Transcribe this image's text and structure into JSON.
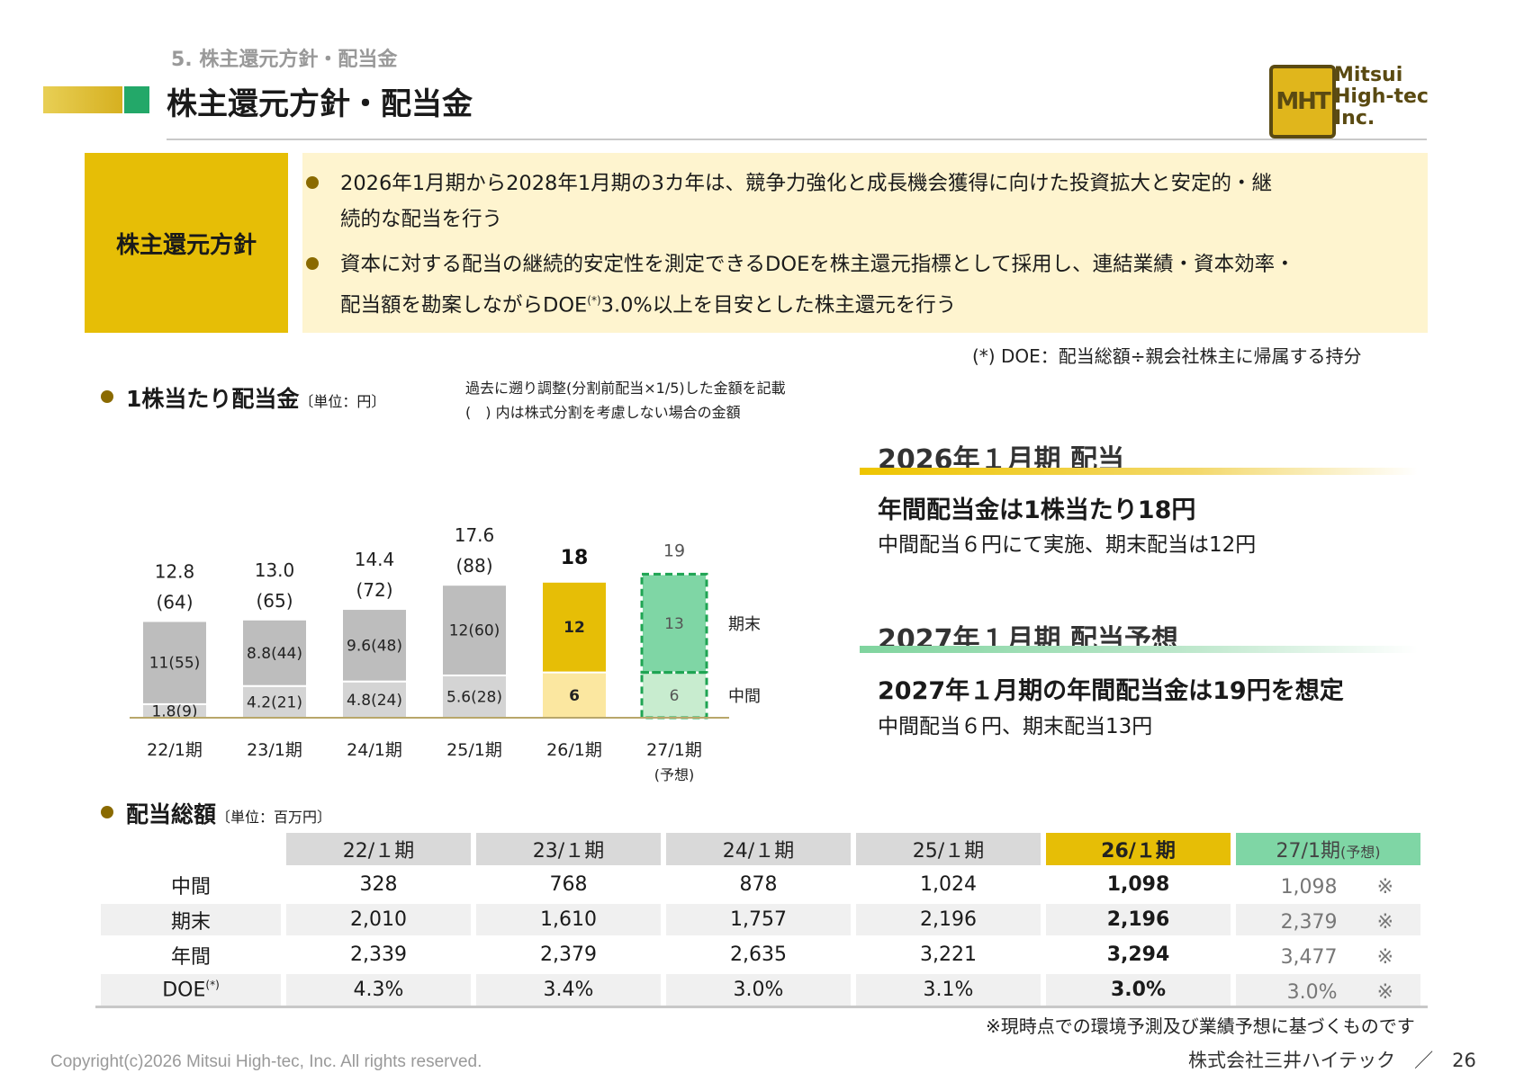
{
  "section_kicker": "5. 株主還元方針・配当金",
  "page_title": "株主還元方針・配当金",
  "logo": {
    "mark": "MHT",
    "line1": "Mitsui",
    "line2": "High-tec",
    "line3": "Inc."
  },
  "policy": {
    "label": "株主還元方針",
    "bullet1_l1": "2026年1月期から2028年1月期の3カ年は、競争力強化と成長機会獲得に向けた投資拡大と安定的・継",
    "bullet1_l2": "続的な配当を行う",
    "bullet2_l1": "資本に対する配当の継続的安定性を測定できるDOEを株主還元指標として採用し、連結業績・資本効率・",
    "bullet2_l2a": "配当額を勘案しながらDOE",
    "bullet2_sup": "(*)",
    "bullet2_l2b": "3.0%以上を目安とした株主還元を行う"
  },
  "doe_note": "(*) DOE：配当総額÷親会社株主に帰属する持分",
  "per_share": {
    "heading": "1株当たり配当金",
    "unit": "〔単位：円〕",
    "note1": "過去に遡り調整(分割前配当×1/5)した金額を記載",
    "note2": "(　) 内は株式分割を考慮しない場合の金額"
  },
  "chart_data": {
    "type": "bar",
    "stacked": true,
    "categories": [
      "22/1期",
      "23/1期",
      "24/1期",
      "25/1期",
      "26/1期",
      "27/1期"
    ],
    "category_note": [
      "",
      "",
      "",
      "",
      "",
      "(予想)"
    ],
    "series": [
      {
        "name": "中間",
        "values": [
          1.8,
          4.2,
          4.8,
          5.6,
          6,
          6
        ],
        "labels": [
          "1.8(9)",
          "4.2(21)",
          "4.8(24)",
          "5.6(28)",
          "6",
          "6"
        ]
      },
      {
        "name": "期末",
        "values": [
          11,
          8.8,
          9.6,
          12,
          12,
          13
        ],
        "labels": [
          "11(55)",
          "8.8(44)",
          "9.6(48)",
          "12(60)",
          "12",
          "13"
        ]
      }
    ],
    "totals": [
      "12.8",
      "13.0",
      "14.4",
      "17.6",
      "18",
      "19"
    ],
    "totals_unadjusted": [
      "(64)",
      "(65)",
      "(72)",
      "(88)",
      "",
      ""
    ],
    "colors": {
      "past_interim": "#d4d4d4",
      "past_final": "#bdbdbd",
      "current_interim": "#fbe7a0",
      "current_final": "#e6be06",
      "forecast_interim": "#c8eccf",
      "forecast_final": "#7fd6a5",
      "forecast_border": "#1fa453"
    }
  },
  "summary_2026": {
    "heading": "2026年１月期 配当",
    "bold": "年間配当金は1株当たり18円",
    "detail": "中間配当６円にて実施、期末配当は12円"
  },
  "summary_2027": {
    "heading": "2027年１月期 配当予想",
    "bold": "2027年１月期の年間配当金は19円を想定",
    "detail": "中間配当６円、期末配当13円"
  },
  "total_div": {
    "heading": "配当総額",
    "unit": "〔単位：百万円〕",
    "headers": [
      "22/１期",
      "23/１期",
      "24/１期",
      "25/１期",
      "26/１期",
      "27/1期"
    ],
    "forecast_tag": "(予想)",
    "rows": [
      {
        "label": "中間",
        "values": [
          "328",
          "768",
          "878",
          "1,024",
          "1,098",
          "1,098"
        ]
      },
      {
        "label": "期末",
        "values": [
          "2,010",
          "1,610",
          "1,757",
          "2,196",
          "2,196",
          "2,379"
        ]
      },
      {
        "label": "年間",
        "values": [
          "2,339",
          "2,379",
          "2,635",
          "3,221",
          "3,294",
          "3,477"
        ]
      },
      {
        "label": "DOE",
        "sup": "(*)",
        "values": [
          "4.3%",
          "3.4%",
          "3.0%",
          "3.1%",
          "3.0%",
          "3.0%"
        ]
      }
    ],
    "forecast_mark": "※",
    "footnote": "※現時点での環境予測及び業績予想に基づくものです"
  },
  "footer": {
    "copyright": "Copyright(c)2026 Mitsui High-tec, Inc. All rights reserved.",
    "company": "株式会社三井ハイテック　／　26"
  }
}
